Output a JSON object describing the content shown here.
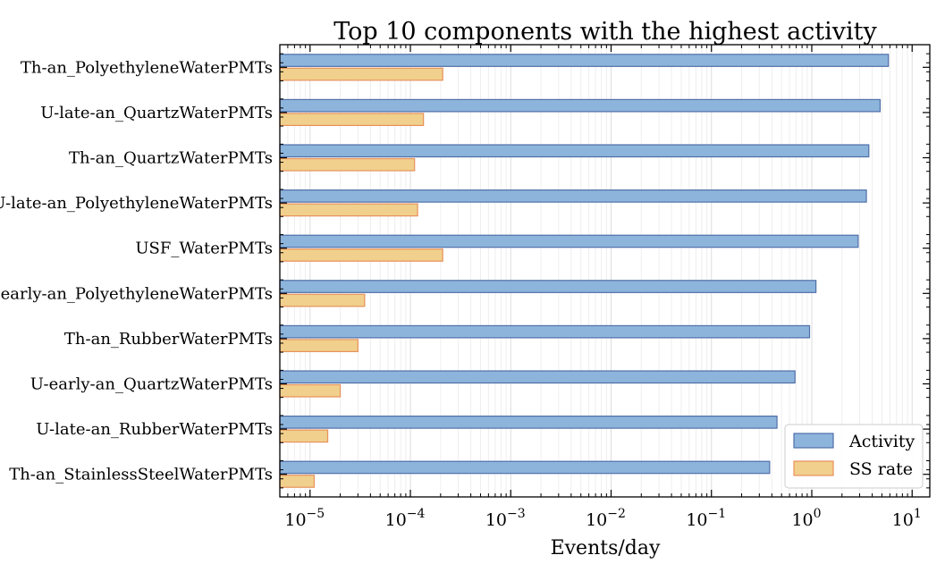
{
  "chart_data": {
    "type": "bar",
    "orientation": "horizontal",
    "title": "Top 10 components with the highest activity",
    "xlabel": "Events/day",
    "ylabel": "",
    "xscale": "log",
    "xlim": [
      5e-06,
      15
    ],
    "grid": true,
    "legend_position": "bottom-right",
    "categories": [
      "Th-an_PolyethyleneWaterPMTs",
      "U-late-an_QuartzWaterPMTs",
      "Th-an_QuartzWaterPMTs",
      "U-late-an_PolyethyleneWaterPMTs",
      "USF_WaterPMTs",
      "U-early-an_PolyethyleneWaterPMTs",
      "Th-an_RubberWaterPMTs",
      "U-early-an_QuartzWaterPMTs",
      "U-late-an_RubberWaterPMTs",
      "Th-an_StainlessSteelWaterPMTs"
    ],
    "series": [
      {
        "name": "Activity",
        "color": "#8db5dc",
        "edge_color": "#4f6fa8",
        "values": [
          5.8,
          4.8,
          3.7,
          3.5,
          2.9,
          1.1,
          0.95,
          0.68,
          0.45,
          0.38
        ]
      },
      {
        "name": "SS rate",
        "color": "#f0d08c",
        "edge_color": "#e8915c",
        "values": [
          0.00021,
          0.000135,
          0.00011,
          0.000118,
          0.00021,
          3.5e-05,
          3e-05,
          2e-05,
          1.5e-05,
          1.1e-05
        ]
      }
    ],
    "xticks": [
      {
        "value": 1e-05,
        "base": "10",
        "exp": "−5"
      },
      {
        "value": 0.0001,
        "base": "10",
        "exp": "−4"
      },
      {
        "value": 0.001,
        "base": "10",
        "exp": "−3"
      },
      {
        "value": 0.01,
        "base": "10",
        "exp": "−2"
      },
      {
        "value": 0.1,
        "base": "10",
        "exp": "−1"
      },
      {
        "value": 1,
        "base": "10",
        "exp": "0"
      },
      {
        "value": 10,
        "base": "10",
        "exp": "1"
      }
    ]
  }
}
